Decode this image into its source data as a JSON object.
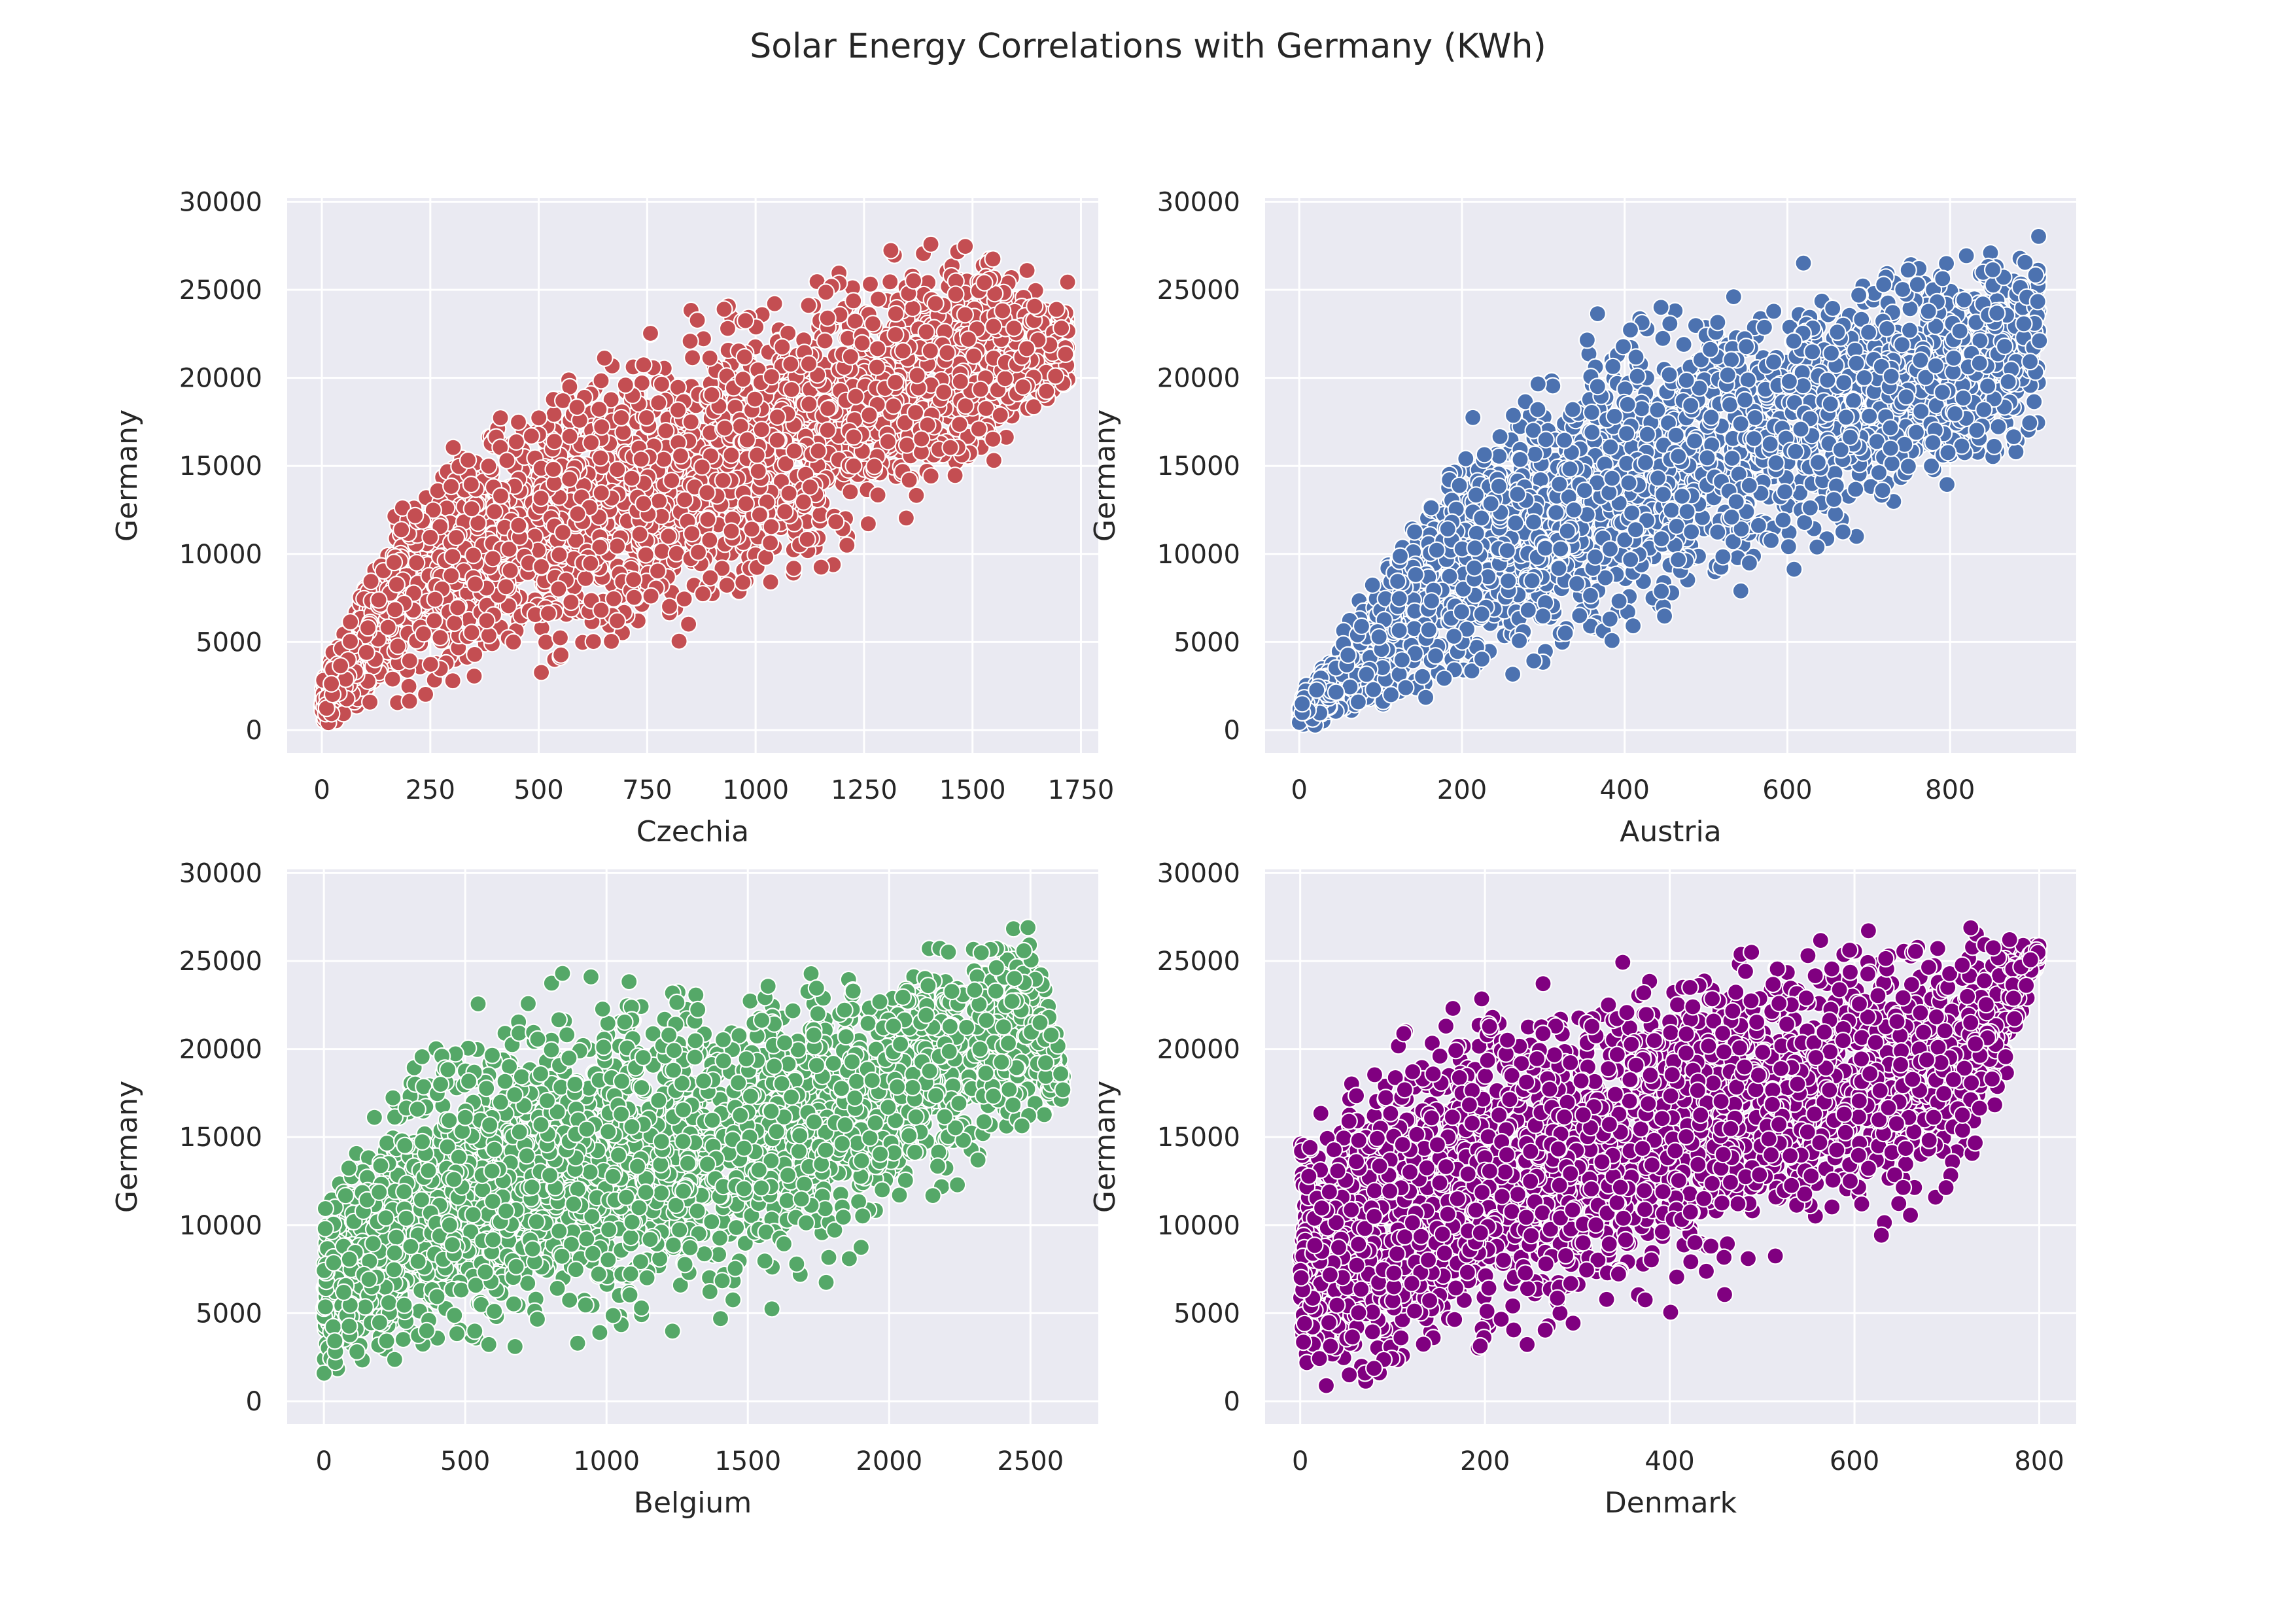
{
  "figure": {
    "title": "Solar Energy Correlations with Germany (KWh)"
  },
  "chart_data": [
    {
      "type": "scatter",
      "xlabel": "Czechia",
      "ylabel": "Germany",
      "color": "#c44e52",
      "xlim": [
        -80,
        1790
      ],
      "ylim": [
        -1300,
        30200
      ],
      "xticks": [
        "0",
        "250",
        "500",
        "750",
        "1000",
        "1250",
        "1500",
        "1750"
      ],
      "yticks": [
        "0",
        "5000",
        "10000",
        "15000",
        "20000",
        "25000",
        "30000"
      ],
      "grid": true,
      "summary": {
        "n_points_approx": 6000,
        "x_range": [
          0,
          1720
        ],
        "y_range": [
          0,
          28900
        ],
        "trend": "positive, roughly linear",
        "envelope_x": [
          0,
          100,
          250,
          500,
          750,
          1000,
          1250,
          1500,
          1700
        ],
        "envelope_y_low": [
          0,
          200,
          1200,
          2500,
          3500,
          5000,
          9000,
          13000,
          18000
        ],
        "envelope_y_high": [
          3000,
          10000,
          17000,
          21000,
          24000,
          26500,
          28000,
          28900,
          26000
        ]
      }
    },
    {
      "type": "scatter",
      "xlabel": "Austria",
      "ylabel": "Germany",
      "color": "#4c72b0",
      "xlim": [
        -42,
        955
      ],
      "ylim": [
        -1300,
        30200
      ],
      "xticks": [
        "0",
        "200",
        "400",
        "600",
        "800"
      ],
      "yticks": [
        "0",
        "5000",
        "10000",
        "15000",
        "20000",
        "25000",
        "30000"
      ],
      "grid": true,
      "summary": {
        "n_points_approx": 6000,
        "x_range": [
          0,
          910
        ],
        "y_range": [
          0,
          28900
        ],
        "trend": "positive, roughly linear",
        "envelope_x": [
          0,
          100,
          200,
          300,
          400,
          500,
          600,
          700,
          800,
          900
        ],
        "envelope_y_low": [
          0,
          300,
          1000,
          2000,
          3500,
          5500,
          7500,
          10000,
          12500,
          15000
        ],
        "envelope_y_high": [
          2000,
          10000,
          18000,
          22000,
          25000,
          26000,
          27000,
          28000,
          28500,
          28900
        ]
      }
    },
    {
      "type": "scatter",
      "xlabel": "Belgium",
      "ylabel": "Germany",
      "color": "#55a868",
      "xlim": [
        -130,
        2740
      ],
      "ylim": [
        -1300,
        30200
      ],
      "xticks": [
        "0",
        "500",
        "1000",
        "1500",
        "2000",
        "2500"
      ],
      "yticks": [
        "0",
        "5000",
        "10000",
        "15000",
        "20000",
        "25000",
        "30000"
      ],
      "grid": true,
      "summary": {
        "n_points_approx": 6000,
        "x_range": [
          0,
          2620
        ],
        "y_range": [
          0,
          28900
        ],
        "trend": "positive, roughly linear",
        "envelope_x": [
          0,
          250,
          500,
          1000,
          1500,
          2000,
          2500,
          2620
        ],
        "envelope_y_low": [
          0,
          500,
          1000,
          2000,
          4000,
          8000,
          14000,
          17000
        ],
        "envelope_y_high": [
          12000,
          20000,
          24000,
          25500,
          26000,
          27000,
          28900,
          19000
        ]
      }
    },
    {
      "type": "scatter",
      "xlabel": "Denmark",
      "ylabel": "Germany",
      "color": "#800080",
      "xlim": [
        -38,
        840
      ],
      "ylim": [
        -1300,
        30200
      ],
      "xticks": [
        "0",
        "200",
        "400",
        "600",
        "800"
      ],
      "yticks": [
        "0",
        "5000",
        "10000",
        "15000",
        "20000",
        "25000",
        "30000"
      ],
      "grid": true,
      "summary": {
        "n_points_approx": 6000,
        "x_range": [
          0,
          800
        ],
        "y_range": [
          0,
          28900
        ],
        "trend": "positive, weaker, wide spread",
        "envelope_x": [
          0,
          100,
          200,
          300,
          400,
          500,
          600,
          720,
          800
        ],
        "envelope_y_low": [
          0,
          0,
          500,
          2000,
          4500,
          6500,
          8500,
          9500,
          25000
        ],
        "envelope_y_high": [
          16000,
          22000,
          25000,
          26000,
          26500,
          27000,
          28500,
          28900,
          26000
        ]
      }
    }
  ]
}
